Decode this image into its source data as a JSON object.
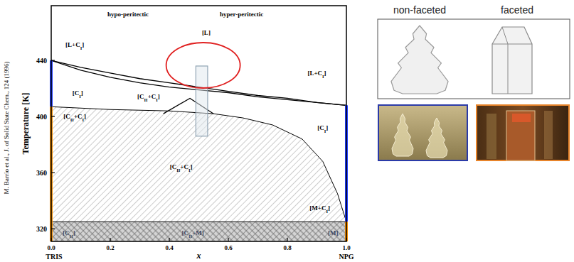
{
  "chart_data": {
    "type": "line",
    "x_label": "x",
    "y_label": "Temperature [K]",
    "xlim": [
      0,
      1
    ],
    "ylim": [
      311,
      479
    ],
    "xticks": [
      {
        "value": 0,
        "label": "0.0"
      },
      {
        "value": 0.2,
        "label": "0.2"
      },
      {
        "value": 0.4,
        "label": "0.4"
      },
      {
        "value": 0.6,
        "label": "0.6"
      },
      {
        "value": 0.8,
        "label": "0.8"
      },
      {
        "value": 1,
        "label": "1.0"
      }
    ],
    "yticks": [
      320,
      360,
      400,
      440
    ],
    "grid": false,
    "x_end_labels": [
      {
        "value": 0,
        "label": "TRIS"
      },
      {
        "value": 1,
        "label": "NPG"
      }
    ],
    "series": [
      {
        "type": "area",
        "color": "#9a9a9a",
        "line_style": "hatched",
        "x": [
          0,
          0.2,
          0.4,
          0.55,
          0.65,
          0.75,
          0.85,
          0.92,
          0.97,
          1
        ],
        "values": [
          407,
          405,
          404,
          402,
          399,
          394,
          384,
          368,
          345,
          325
        ]
      },
      {
        "type": "area",
        "color": "#5a5a5a",
        "line_style": "cross-hatched",
        "x": [
          0,
          1
        ],
        "values": [
          325,
          325
        ]
      },
      {
        "type": "line",
        "color": "#000000",
        "line_style": "solid",
        "x": [
          0,
          0.1,
          0.2,
          0.3,
          0.4,
          0.5,
          0.6,
          0.7,
          0.8,
          0.9,
          1
        ],
        "values": [
          440,
          435,
          431,
          427,
          424,
          421,
          418,
          415,
          413,
          410,
          408
        ]
      },
      {
        "type": "line",
        "color": "#000000",
        "line_style": "solid",
        "x": [
          0,
          0.1,
          0.2,
          0.3,
          0.4,
          0.5,
          0.6,
          0.7,
          0.8,
          0.9,
          1
        ],
        "values": [
          440,
          433,
          428,
          424,
          421,
          419,
          417,
          414,
          412,
          410,
          408
        ]
      },
      {
        "type": "line",
        "color": "#000000",
        "line_style": "solid",
        "x": [
          0.38,
          0.47,
          0.55
        ],
        "values": [
          402,
          413,
          402
        ]
      }
    ],
    "axis_segments": [
      {
        "x": 0,
        "y": [
          407,
          440
        ],
        "color": "#1f3cff"
      },
      {
        "x": 0,
        "y": [
          311,
          407
        ],
        "color": "#f08c00"
      },
      {
        "x": 1,
        "y": [
          325,
          408
        ],
        "color": "#1f3cff"
      },
      {
        "x": 1,
        "y": [
          311,
          325
        ],
        "color": "#f08c00"
      }
    ],
    "highlight_box": {
      "x": [
        0.49,
        0.53
      ],
      "y": [
        386,
        436
      ],
      "color": "#8fa3b3"
    },
    "annotations": [
      {
        "x": 0.26,
        "y": 473,
        "parts": [
          {
            "t": "hypo-peritectic"
          }
        ]
      },
      {
        "x": 0.645,
        "y": 473,
        "parts": [
          {
            "t": "hyper-peritectic"
          }
        ]
      },
      {
        "x": 0.08,
        "y": 451,
        "parts": [
          {
            "t": "[L+C"
          },
          {
            "t": "I",
            "sub": true
          },
          {
            "t": "]"
          }
        ]
      },
      {
        "x": 0.525,
        "y": 460,
        "parts": [
          {
            "t": "[L]"
          }
        ]
      },
      {
        "x": 0.9,
        "y": 431,
        "parts": [
          {
            "t": "[L+C"
          },
          {
            "t": "I",
            "sub": true
          },
          {
            "t": "]"
          }
        ]
      },
      {
        "x": 0.09,
        "y": 417,
        "parts": [
          {
            "t": "[C"
          },
          {
            "t": "I",
            "sub": true
          },
          {
            "t": "]"
          }
        ]
      },
      {
        "x": 0.33,
        "y": 414,
        "parts": [
          {
            "t": "[C"
          },
          {
            "t": "II",
            "sub": true
          },
          {
            "t": "+C"
          },
          {
            "t": "I",
            "sub": true
          },
          {
            "t": "]"
          }
        ]
      },
      {
        "x": 0.92,
        "y": 392,
        "parts": [
          {
            "t": "[C"
          },
          {
            "t": "I",
            "sub": true
          },
          {
            "t": "]"
          }
        ]
      },
      {
        "x": 0.08,
        "y": 400,
        "parts": [
          {
            "t": "[C"
          },
          {
            "t": "II",
            "sub": true
          },
          {
            "t": "+C"
          },
          {
            "t": "I",
            "sub": true
          },
          {
            "t": "]"
          }
        ]
      },
      {
        "x": 0.44,
        "y": 364,
        "parts": [
          {
            "t": "[C"
          },
          {
            "t": "II",
            "sub": true
          },
          {
            "t": "+C"
          },
          {
            "t": "I",
            "sub": true
          },
          {
            "t": "]"
          }
        ]
      },
      {
        "x": 0.91,
        "y": 335,
        "parts": [
          {
            "t": "[M+C"
          },
          {
            "t": "I",
            "sub": true
          },
          {
            "t": "]"
          }
        ]
      },
      {
        "x": 0.06,
        "y": 317,
        "parts": [
          {
            "t": "[C"
          },
          {
            "t": "II",
            "sub": true
          },
          {
            "t": "]"
          }
        ]
      },
      {
        "x": 0.48,
        "y": 317,
        "parts": [
          {
            "t": "[C"
          },
          {
            "t": "II",
            "sub": true
          },
          {
            "t": "+M]"
          }
        ]
      },
      {
        "x": 0.955,
        "y": 317,
        "parts": [
          {
            "t": "[M]"
          }
        ]
      }
    ]
  },
  "citation": "M. Barrio et al., J. of Solid State Chem., 124 (1996)",
  "growth_panels": {
    "labels": [
      "non-faceted",
      "faceted"
    ]
  }
}
